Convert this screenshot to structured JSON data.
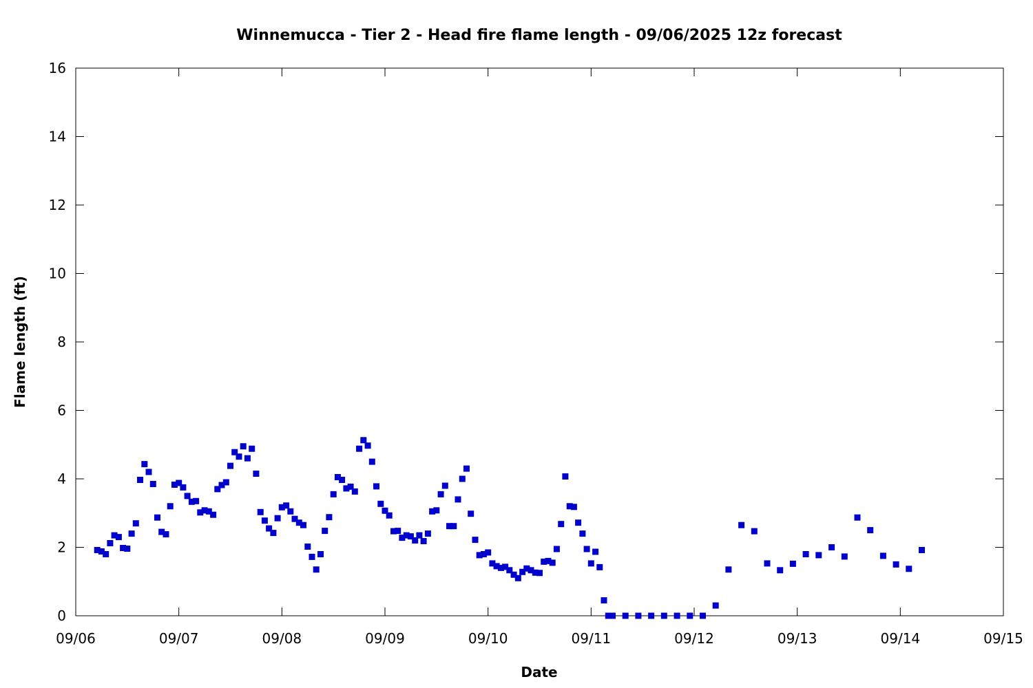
{
  "chart_data": {
    "type": "scatter",
    "title": "Winnemucca - Tier 2 - Head fire flame length - 09/06/2025 12z forecast",
    "xlabel": "Date",
    "ylabel": "Flame length (ft)",
    "xlim": [
      "2025-09-06 00:00",
      "2025-09-15 00:00"
    ],
    "ylim": [
      0,
      16
    ],
    "x_ticks": [
      "09/06",
      "09/07",
      "09/08",
      "09/09",
      "09/10",
      "09/11",
      "09/12",
      "09/13",
      "09/14",
      "09/15"
    ],
    "y_ticks": [
      "0",
      "2",
      "4",
      "6",
      "8",
      "10",
      "12",
      "14",
      "16"
    ],
    "grid": false,
    "legend": "none",
    "marker_color": "#0000cc",
    "series": [
      {
        "x": [
          "2025-09-06 05:00",
          "2025-09-06 06:00",
          "2025-09-06 07:00",
          "2025-09-06 08:00",
          "2025-09-06 09:00",
          "2025-09-06 10:00",
          "2025-09-06 11:00",
          "2025-09-06 12:00",
          "2025-09-06 13:00",
          "2025-09-06 14:00",
          "2025-09-06 15:00",
          "2025-09-06 16:00",
          "2025-09-06 17:00",
          "2025-09-06 18:00",
          "2025-09-06 19:00",
          "2025-09-06 20:00",
          "2025-09-06 21:00",
          "2025-09-06 22:00",
          "2025-09-06 23:00",
          "2025-09-07 00:00",
          "2025-09-07 01:00",
          "2025-09-07 02:00",
          "2025-09-07 03:00",
          "2025-09-07 04:00",
          "2025-09-07 05:00",
          "2025-09-07 06:00",
          "2025-09-07 07:00",
          "2025-09-07 08:00",
          "2025-09-07 09:00",
          "2025-09-07 10:00",
          "2025-09-07 11:00",
          "2025-09-07 12:00",
          "2025-09-07 13:00",
          "2025-09-07 14:00",
          "2025-09-07 15:00",
          "2025-09-07 16:00",
          "2025-09-07 17:00",
          "2025-09-07 18:00",
          "2025-09-07 19:00",
          "2025-09-07 20:00",
          "2025-09-07 21:00",
          "2025-09-07 22:00",
          "2025-09-07 23:00",
          "2025-09-08 00:00",
          "2025-09-08 01:00",
          "2025-09-08 02:00",
          "2025-09-08 03:00",
          "2025-09-08 04:00",
          "2025-09-08 05:00",
          "2025-09-08 06:00",
          "2025-09-08 07:00",
          "2025-09-08 08:00",
          "2025-09-08 09:00",
          "2025-09-08 10:00",
          "2025-09-08 11:00",
          "2025-09-08 12:00",
          "2025-09-08 13:00",
          "2025-09-08 14:00",
          "2025-09-08 15:00",
          "2025-09-08 16:00",
          "2025-09-08 17:00",
          "2025-09-08 18:00",
          "2025-09-08 19:00",
          "2025-09-08 20:00",
          "2025-09-08 21:00",
          "2025-09-08 22:00",
          "2025-09-08 23:00",
          "2025-09-09 00:00",
          "2025-09-09 01:00",
          "2025-09-09 02:00",
          "2025-09-09 03:00",
          "2025-09-09 04:00",
          "2025-09-09 05:00",
          "2025-09-09 06:00",
          "2025-09-09 07:00",
          "2025-09-09 08:00",
          "2025-09-09 09:00",
          "2025-09-09 10:00",
          "2025-09-09 11:00",
          "2025-09-09 12:00",
          "2025-09-09 13:00",
          "2025-09-09 14:00",
          "2025-09-09 15:00",
          "2025-09-09 16:00",
          "2025-09-09 17:00",
          "2025-09-09 18:00",
          "2025-09-09 19:00",
          "2025-09-09 20:00",
          "2025-09-09 21:00",
          "2025-09-09 22:00",
          "2025-09-09 23:00",
          "2025-09-10 00:00",
          "2025-09-10 01:00",
          "2025-09-10 02:00",
          "2025-09-10 03:00",
          "2025-09-10 04:00",
          "2025-09-10 05:00",
          "2025-09-10 06:00",
          "2025-09-10 07:00",
          "2025-09-10 08:00",
          "2025-09-10 09:00",
          "2025-09-10 10:00",
          "2025-09-10 11:00",
          "2025-09-10 12:00",
          "2025-09-10 13:00",
          "2025-09-10 14:00",
          "2025-09-10 15:00",
          "2025-09-10 16:00",
          "2025-09-10 17:00",
          "2025-09-10 18:00",
          "2025-09-10 19:00",
          "2025-09-10 20:00",
          "2025-09-10 21:00",
          "2025-09-10 22:00",
          "2025-09-10 23:00",
          "2025-09-11 00:00",
          "2025-09-11 01:00",
          "2025-09-11 02:00",
          "2025-09-11 03:00",
          "2025-09-11 04:00",
          "2025-09-11 05:00",
          "2025-09-11 08:00",
          "2025-09-11 11:00",
          "2025-09-11 14:00",
          "2025-09-11 17:00",
          "2025-09-11 20:00",
          "2025-09-11 23:00",
          "2025-09-12 02:00",
          "2025-09-12 05:00",
          "2025-09-12 08:00",
          "2025-09-12 11:00",
          "2025-09-12 14:00",
          "2025-09-12 17:00",
          "2025-09-12 20:00",
          "2025-09-12 23:00",
          "2025-09-13 02:00",
          "2025-09-13 05:00",
          "2025-09-13 08:00",
          "2025-09-13 11:00",
          "2025-09-13 14:00",
          "2025-09-13 17:00",
          "2025-09-13 20:00",
          "2025-09-13 23:00",
          "2025-09-14 02:00",
          "2025-09-14 05:00"
        ],
        "y": [
          1.92,
          1.88,
          1.8,
          2.12,
          2.35,
          2.3,
          1.98,
          1.96,
          2.4,
          2.7,
          3.97,
          4.43,
          4.2,
          3.85,
          2.87,
          2.45,
          2.38,
          3.2,
          3.83,
          3.88,
          3.75,
          3.5,
          3.33,
          3.35,
          3.02,
          3.08,
          3.05,
          2.95,
          3.7,
          3.82,
          3.9,
          4.38,
          4.78,
          4.65,
          4.95,
          4.6,
          4.88,
          4.15,
          3.03,
          2.78,
          2.55,
          2.42,
          2.85,
          3.17,
          3.22,
          3.05,
          2.83,
          2.72,
          2.65,
          2.02,
          1.72,
          1.35,
          1.8,
          2.48,
          2.88,
          3.55,
          4.05,
          3.97,
          3.72,
          3.77,
          3.63,
          4.88,
          5.13,
          4.97,
          4.5,
          3.78,
          3.27,
          3.07,
          2.93,
          2.47,
          2.48,
          2.28,
          2.35,
          2.32,
          2.2,
          2.35,
          2.18,
          2.4,
          3.05,
          3.08,
          3.55,
          3.8,
          2.62,
          2.62,
          3.4,
          4.0,
          4.3,
          2.98,
          2.22,
          1.77,
          1.8,
          1.85,
          1.53,
          1.45,
          1.4,
          1.43,
          1.33,
          1.2,
          1.1,
          1.28,
          1.38,
          1.33,
          1.26,
          1.25,
          1.58,
          1.6,
          1.55,
          1.95,
          2.68,
          4.07,
          3.2,
          3.18,
          2.72,
          2.4,
          1.95,
          1.53,
          1.87,
          1.42,
          0.45,
          0.0,
          0.0,
          0.0,
          0.0,
          0.0,
          0.0,
          0.0,
          0.0,
          0.0,
          0.3,
          1.35,
          2.65,
          2.47,
          1.53,
          1.33,
          1.52,
          1.8,
          1.77,
          2.0,
          1.73,
          2.87,
          2.5,
          1.75,
          1.5,
          1.37,
          1.92
        ]
      }
    ]
  }
}
